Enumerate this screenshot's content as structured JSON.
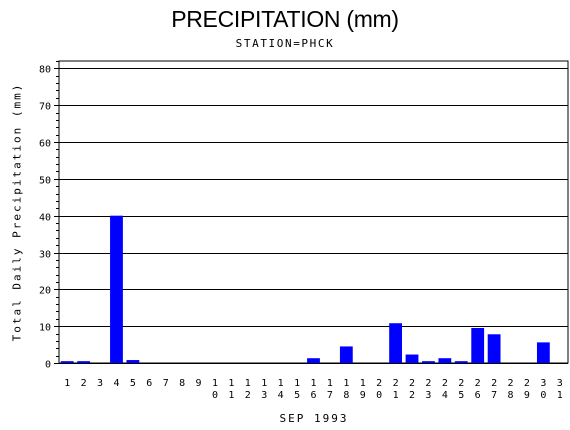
{
  "chart_data": {
    "type": "bar",
    "title": "PRECIPITATION (mm)",
    "subtitle": "STATION=PHCK",
    "xlabel": "SEP 1993",
    "ylabel": "Total Daily Precipitation (mm)",
    "ylim": [
      0,
      82
    ],
    "yticks": [
      0,
      10,
      20,
      30,
      40,
      50,
      60,
      70,
      80
    ],
    "grid": true,
    "bar_color": "#0000ff",
    "categories": [
      "1",
      "2",
      "3",
      "4",
      "5",
      "6",
      "7",
      "8",
      "9",
      "10",
      "11",
      "12",
      "13",
      "14",
      "15",
      "16",
      "17",
      "18",
      "19",
      "20",
      "21",
      "22",
      "23",
      "24",
      "25",
      "26",
      "27",
      "28",
      "29",
      "30",
      "31"
    ],
    "values": [
      0.5,
      0.5,
      0,
      40,
      0.8,
      0,
      0,
      0,
      0,
      0,
      0,
      0,
      0,
      0,
      0,
      1.3,
      0,
      4.5,
      0,
      0,
      10.8,
      2.3,
      0.5,
      1.3,
      0.5,
      9.5,
      7.8,
      0,
      0,
      5.6,
      0
    ]
  }
}
